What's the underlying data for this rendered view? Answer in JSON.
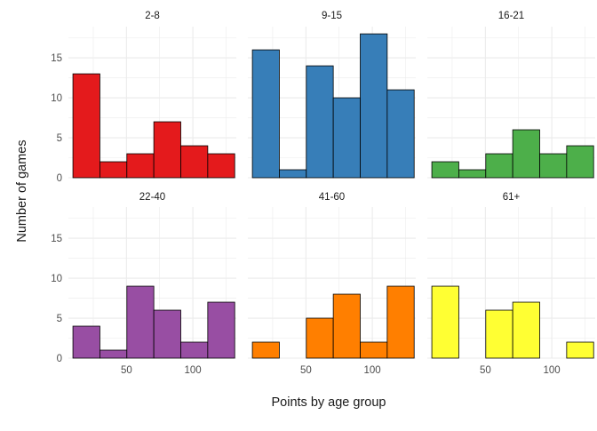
{
  "chart_data": {
    "type": "bar",
    "subtype": "faceted-histogram",
    "title": "",
    "xlabel": "Points by age group",
    "ylabel": "Number of games",
    "ylim": [
      0,
      18.9
    ],
    "xlim": [
      6.3,
      132.7
    ],
    "x_ticks": [
      50,
      100
    ],
    "y_ticks": [
      0,
      5,
      10,
      15
    ],
    "bin_width": 20.3,
    "bin_edges": [
      9.7,
      30.0,
      50.3,
      70.6,
      90.9,
      111.2,
      131.5
    ],
    "grid": true,
    "legend": "none",
    "bar_outline_color": "#000000",
    "grid_color": "#ebebeb",
    "text_color": "#4d4d4d",
    "title_color": "#1a1a1a",
    "facets": [
      {
        "label": "2-8",
        "color": "#e41a1c",
        "values": [
          13,
          2,
          3,
          7,
          4,
          3
        ]
      },
      {
        "label": "9-15",
        "color": "#377eb8",
        "values": [
          16,
          1,
          14,
          10,
          18,
          11
        ]
      },
      {
        "label": "16-21",
        "color": "#4daf4a",
        "values": [
          2,
          1,
          3,
          6,
          3,
          4
        ]
      },
      {
        "label": "22-40",
        "color": "#984ea3",
        "values": [
          4,
          1,
          9,
          6,
          2,
          7
        ]
      },
      {
        "label": "41-60",
        "color": "#ff7f00",
        "values": [
          2,
          0,
          5,
          8,
          2,
          9
        ]
      },
      {
        "label": "61+",
        "color": "#ffff33",
        "values": [
          9,
          0,
          6,
          7,
          0,
          2
        ]
      }
    ]
  }
}
